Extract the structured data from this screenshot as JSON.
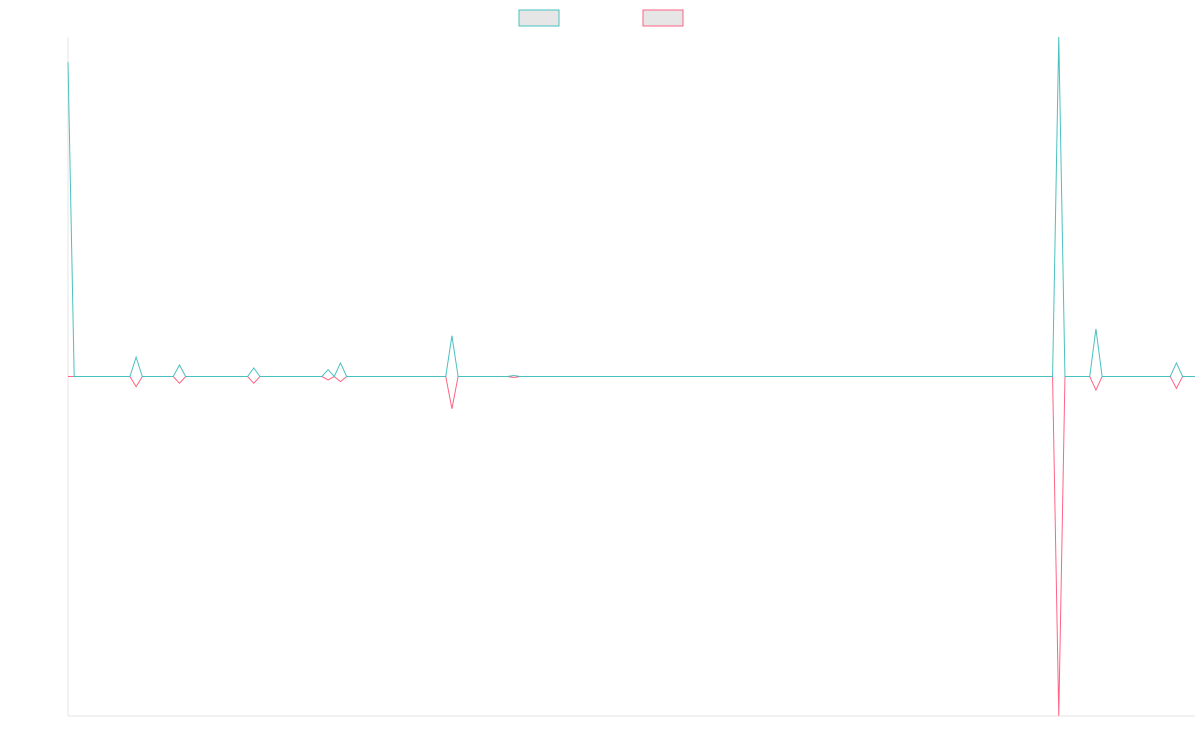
{
  "chart_data": {
    "type": "line",
    "series": [
      {
        "color": "#4bc0c0",
        "values": [
          92.6,
          0,
          0,
          0,
          0,
          0,
          0,
          0,
          0,
          0,
          0,
          5.7,
          0,
          0,
          0,
          0,
          0,
          0,
          3.4,
          0,
          0,
          0,
          0,
          0,
          0,
          0,
          0,
          0,
          0,
          0,
          2.5,
          0,
          0,
          0,
          0,
          0,
          0,
          0,
          0,
          0,
          0,
          0,
          2,
          0,
          4,
          0,
          0,
          0,
          0,
          0,
          0,
          0,
          0,
          0,
          0,
          0,
          0,
          0,
          0,
          0,
          0,
          0,
          12,
          0,
          0,
          0,
          0,
          0,
          0,
          0,
          0,
          0,
          0.3,
          0,
          0,
          0,
          0,
          0,
          0,
          0,
          0,
          0,
          0,
          0,
          0,
          0,
          0,
          0,
          0,
          0,
          0,
          0,
          0,
          0,
          0,
          0,
          0,
          0,
          0,
          0,
          0,
          0,
          0,
          0,
          0,
          0,
          0,
          0,
          0,
          0,
          0,
          0,
          0,
          0,
          0,
          0,
          0,
          0,
          0,
          0,
          0,
          0,
          0,
          0,
          0,
          0,
          0,
          0,
          0,
          0,
          0,
          0,
          0,
          0,
          0,
          0,
          0,
          0,
          0,
          0,
          0,
          0,
          0,
          0,
          0,
          0,
          0,
          0,
          0,
          0,
          0,
          0,
          0,
          0,
          0,
          0,
          0,
          0,
          0,
          0,
          100,
          0,
          0,
          0,
          0,
          0,
          14,
          0,
          0,
          0,
          0,
          0,
          0,
          0,
          0,
          0,
          0,
          0,
          0,
          4,
          0,
          0,
          0
        ]
      },
      {
        "color": "#ff6384",
        "values": [
          0,
          0,
          0,
          0,
          0,
          0,
          0,
          0,
          0,
          0,
          0,
          -3,
          0,
          0,
          0,
          0,
          0,
          0,
          -2,
          0,
          0,
          0,
          0,
          0,
          0,
          0,
          0,
          0,
          0,
          0,
          -2,
          0,
          0,
          0,
          0,
          0,
          0,
          0,
          0,
          0,
          0,
          0,
          -1,
          0,
          -1.5,
          0,
          0,
          0,
          0,
          0,
          0,
          0,
          0,
          0,
          0,
          0,
          0,
          0,
          0,
          0,
          0,
          0,
          -9.5,
          0,
          0,
          0,
          0,
          0,
          0,
          0,
          0,
          0,
          -0.3,
          0,
          0,
          0,
          0,
          0,
          0,
          0,
          0,
          0,
          0,
          0,
          0,
          0,
          0,
          0,
          0,
          0,
          0,
          0,
          0,
          0,
          0,
          0,
          0,
          0,
          0,
          0,
          0,
          0,
          0,
          0,
          0,
          0,
          0,
          0,
          0,
          0,
          0,
          0,
          0,
          0,
          0,
          0,
          0,
          0,
          0,
          0,
          0,
          0,
          0,
          0,
          0,
          0,
          0,
          0,
          0,
          0,
          0,
          0,
          0,
          0,
          0,
          0,
          0,
          0,
          0,
          0,
          0,
          0,
          0,
          0,
          0,
          0,
          0,
          0,
          0,
          0,
          0,
          0,
          0,
          0,
          0,
          0,
          0,
          0,
          0,
          0,
          -100,
          0,
          0,
          0,
          0,
          0,
          -4,
          0,
          0,
          0,
          0,
          0,
          0,
          0,
          0,
          0,
          0,
          0,
          0,
          -3.5,
          0,
          0,
          0
        ]
      }
    ],
    "ylim": [
      -100,
      100
    ],
    "legend": "top"
  }
}
